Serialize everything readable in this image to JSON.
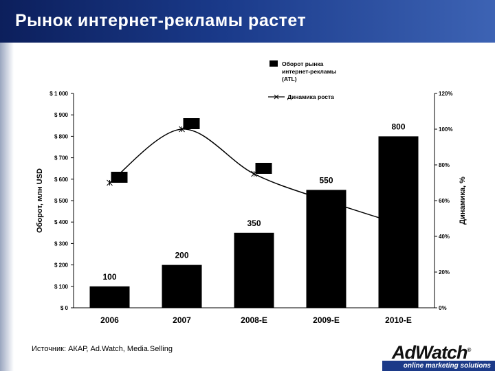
{
  "header": {
    "title": "Рынок интернет-рекламы растет"
  },
  "chart_data": {
    "type": "bar",
    "categories": [
      "2006",
      "2007",
      "2008-E",
      "2009-E",
      "2010-E"
    ],
    "series": [
      {
        "name": "Оборот рынка интернет-рекламы (ATL)",
        "type": "bar",
        "axis": "left",
        "values": [
          100,
          200,
          350,
          550,
          800
        ],
        "color": "#000000"
      },
      {
        "name": "Динамика роста",
        "type": "line",
        "axis": "right",
        "values": [
          70,
          100,
          75,
          60,
          47
        ],
        "color": "#000000"
      }
    ],
    "data_labels": [
      "100",
      "200",
      "350",
      "550",
      "800"
    ],
    "ylabel": "Оборот, млн USD",
    "y2label": "Динамика, %",
    "ylim": [
      0,
      1000
    ],
    "y2lim": [
      0,
      120
    ],
    "yticks": [
      "$ 0",
      "$ 100",
      "$ 200",
      "$ 300",
      "$ 400",
      "$ 500",
      "$ 600",
      "$ 700",
      "$ 800",
      "$ 900",
      "$ 1 000"
    ],
    "y2ticks": [
      "0%",
      "20%",
      "40%",
      "60%",
      "80%",
      "100%",
      "120%"
    ],
    "legend_labels": [
      "Оборот рынка",
      "интернет-рекламы",
      "(ATL)"
    ],
    "legend_placement": "top-right",
    "grid": false
  },
  "footer": {
    "source": "Источник: АКАР, Ad.Watch, Media.Selling",
    "logo": "AdWatch",
    "registered": "®",
    "tagline": "online marketing solutions"
  },
  "colors": {
    "title_bar": "#1a3a8a",
    "bars": "#000000",
    "tagline_bar": "#1c3a88"
  }
}
